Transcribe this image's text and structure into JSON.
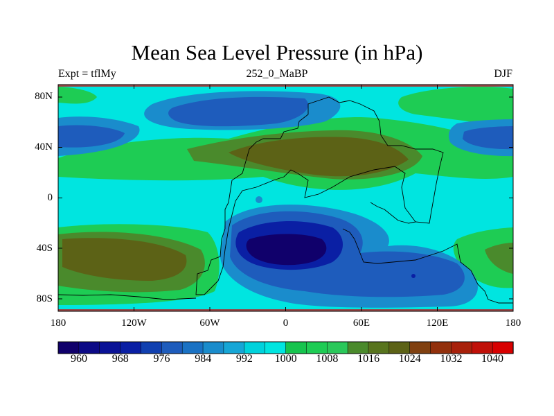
{
  "title": "Mean Sea Level Pressure (in hPa)",
  "subtitle_left": "Expt = tflMy",
  "subtitle_center": "252_0_MaBP",
  "subtitle_right": "DJF",
  "map": {
    "projection": "cylindrical equidistant",
    "lon_range": [
      -180,
      180
    ],
    "lat_range": [
      -90,
      90
    ],
    "x_ticks": [
      "180",
      "120W",
      "60W",
      "0",
      "60E",
      "120E",
      "180"
    ],
    "y_ticks": [
      "80N",
      "40N",
      "0",
      "40S",
      "80S"
    ]
  },
  "colorbar": {
    "unit": "hPa",
    "levels": [
      956,
      960,
      964,
      968,
      972,
      976,
      980,
      984,
      988,
      992,
      996,
      1000,
      1004,
      1008,
      1012,
      1016,
      1020,
      1024,
      1028,
      1032,
      1036,
      1040
    ],
    "colors": [
      "#10006b",
      "#0c0a86",
      "#0a1296",
      "#0a1fa4",
      "#1140b0",
      "#1e5cbc",
      "#1a72c4",
      "#1a8ccc",
      "#16a6d6",
      "#00d2dc",
      "#00e5e0",
      "#16c44e",
      "#1ecc54",
      "#2ac85a",
      "#4a8a2c",
      "#58741e",
      "#5c6216",
      "#804010",
      "#92300c",
      "#a8200a",
      "#c01008",
      "#d80000"
    ],
    "labels": [
      "960",
      "968",
      "976",
      "984",
      "992",
      "1000",
      "1008",
      "1016",
      "1024",
      "1032",
      "1040"
    ]
  }
}
